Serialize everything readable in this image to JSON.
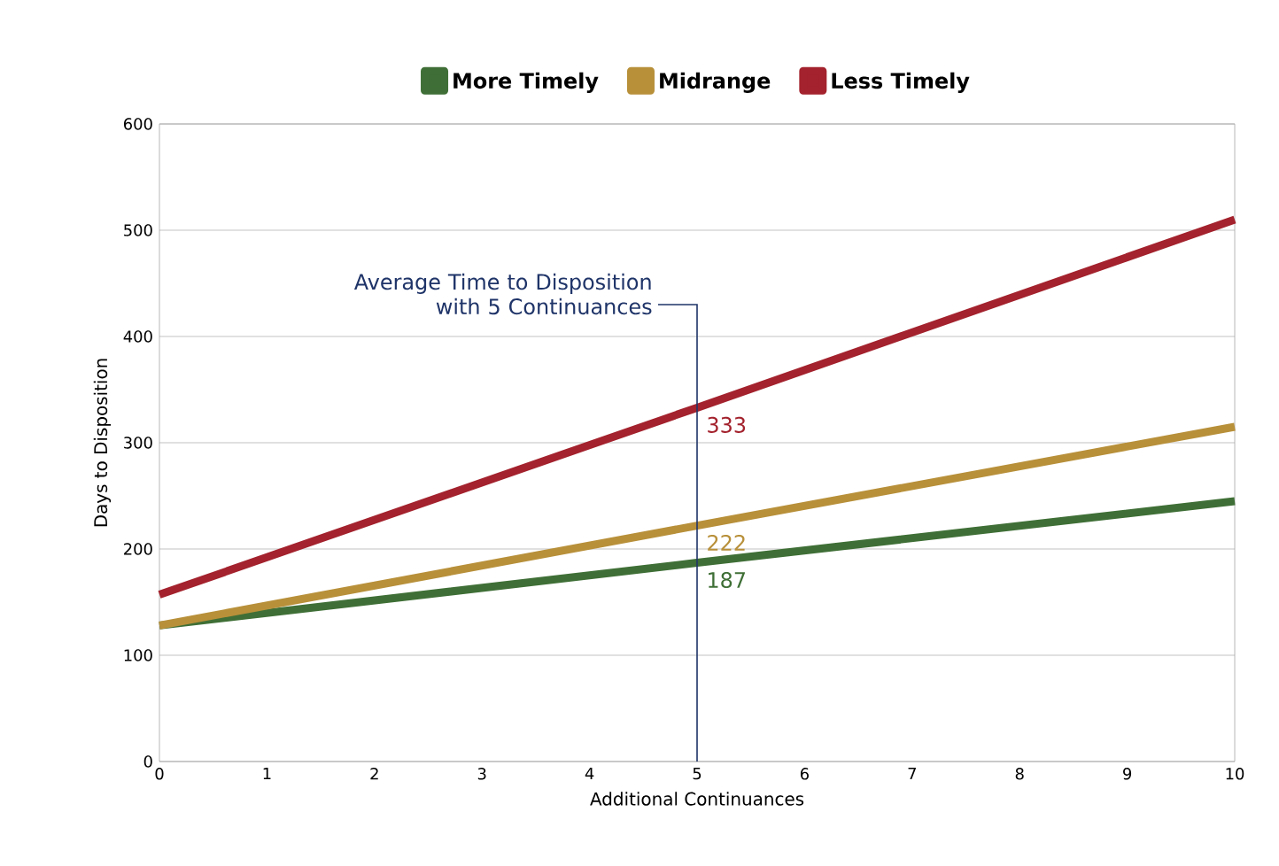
{
  "chart_data": {
    "type": "line",
    "xlabel": "Additional Continuances",
    "ylabel": "Days to Disposition",
    "x": [
      0,
      5,
      10
    ],
    "series": [
      {
        "name": "More Timely",
        "color": "#3f6f36",
        "values": [
          128,
          187,
          245
        ],
        "value_labels": [
          null,
          "187",
          null
        ]
      },
      {
        "name": "Midrange",
        "color": "#b8903a",
        "values": [
          128,
          222,
          315
        ],
        "value_labels": [
          null,
          "222",
          null
        ]
      },
      {
        "name": "Less Timely",
        "color": "#a3222d",
        "values": [
          157,
          333,
          510
        ],
        "value_labels": [
          null,
          "333",
          null
        ]
      }
    ],
    "xlim": [
      0,
      10
    ],
    "xticks": [
      0,
      1,
      2,
      3,
      4,
      5,
      6,
      7,
      8,
      9,
      10
    ],
    "ylim": [
      0,
      600
    ],
    "yticks": [
      0,
      100,
      200,
      300,
      400,
      500,
      600
    ],
    "grid": "y",
    "legend": "top",
    "marker": "none",
    "line_style": "solid",
    "ref_lines": [
      {
        "axis": "x",
        "value": 5,
        "label": "Average Time to Disposition with 5 Continuances",
        "color": "#1f3468"
      }
    ]
  }
}
